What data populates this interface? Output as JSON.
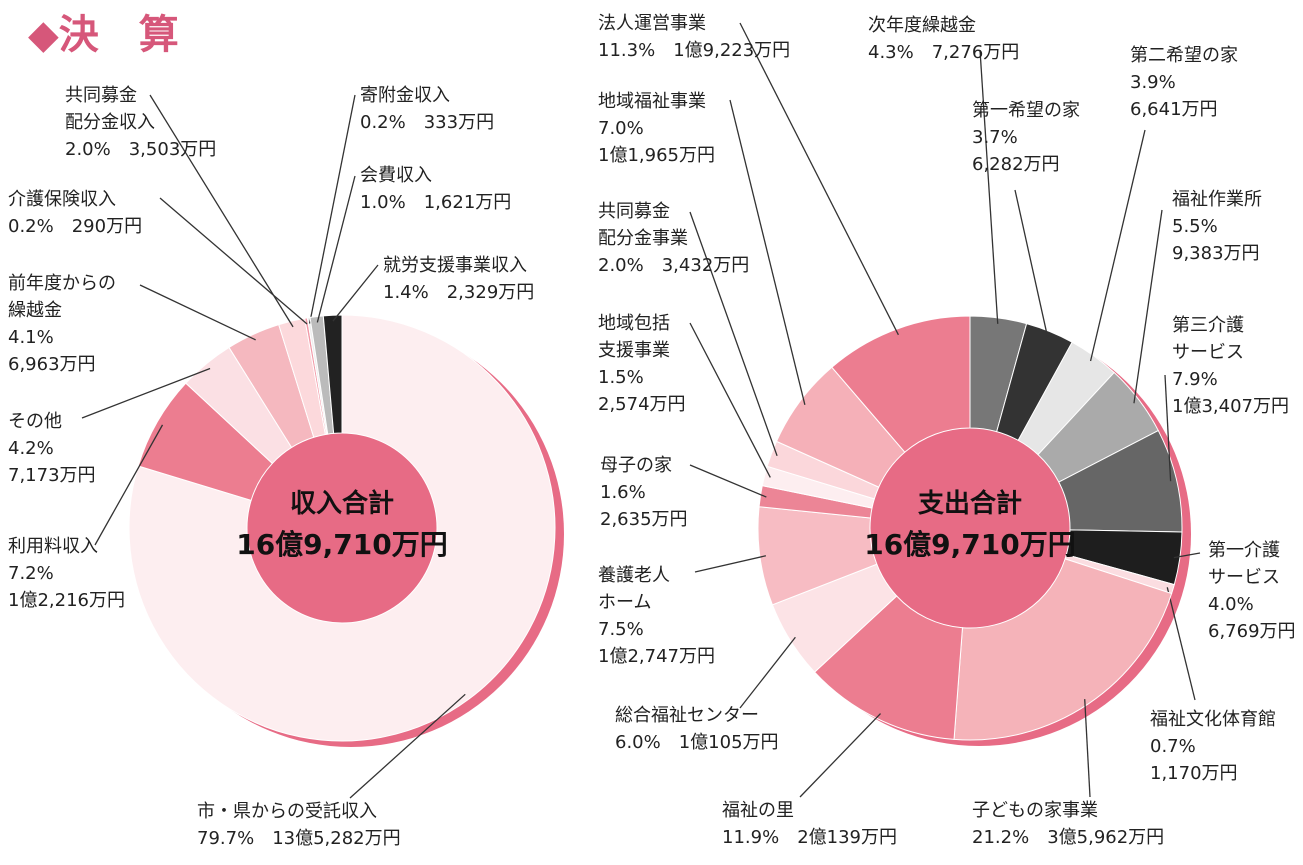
{
  "page_title": "◆決　算",
  "chart_data": [
    {
      "type": "donut",
      "center_label": "収入合計",
      "total_label": "16億9,710万円",
      "categories": [
        "市・県からの受託収入",
        "利用料収入",
        "その他",
        "前年度からの\n繰越金",
        "共同募金\n配分金収入",
        "介護保険収入",
        "寄附金収入",
        "会費収入",
        "就労支援事業収入"
      ],
      "values": [
        79.7,
        7.2,
        4.2,
        4.1,
        2.0,
        0.2,
        0.2,
        1.0,
        1.4
      ],
      "value_labels": [
        "79.7%",
        "7.2%",
        "4.2%",
        "4.1%",
        "2.0%",
        "0.2%",
        "0.2%",
        "1.0%",
        "1.4%"
      ],
      "amount_labels": [
        "13億5,282万円",
        "1億2,216万円",
        "7,173万円",
        "6,963万円",
        "3,503万円",
        "290万円",
        "333万円",
        "1,621万円",
        "2,329万円"
      ],
      "colors": [
        "#fdeef0",
        "#ec7d90",
        "#fbe0e4",
        "#f5b8bf",
        "#fcd9dc",
        "#f29aa8",
        "#eeeeee",
        "#bbbbbb",
        "#222222"
      ],
      "shadow_color": "#e76b85"
    },
    {
      "type": "donut",
      "center_label": "支出合計",
      "total_label": "16億9,710万円",
      "categories": [
        "次年度繰越金",
        "第一希望の家",
        "第二希望の家",
        "福祉作業所",
        "第三介護\nサービス",
        "第一介護\nサービス",
        "福祉文化体育館",
        "子どもの家事業",
        "福祉の里",
        "総合福祉センター",
        "養護老人\nホーム",
        "母子の家",
        "地域包括\n支援事業",
        "共同募金\n配分金事業",
        "地域福祉事業",
        "法人運営事業"
      ],
      "values": [
        4.3,
        3.7,
        3.9,
        5.5,
        7.9,
        4.0,
        0.7,
        21.2,
        11.9,
        6.0,
        7.5,
        1.6,
        1.5,
        2.0,
        7.0,
        11.3
      ],
      "value_labels": [
        "4.3%",
        "3.7%",
        "3.9%",
        "5.5%",
        "7.9%",
        "4.0%",
        "0.7%",
        "21.2%",
        "11.9%",
        "6.0%",
        "7.5%",
        "1.6%",
        "1.5%",
        "2.0%",
        "7.0%",
        "11.3%"
      ],
      "amount_labels": [
        "7,276万円",
        "6,282万円",
        "6,641万円",
        "9,383万円",
        "1億3,407万円",
        "6,769万円",
        "1,170万円",
        "3億5,962万円",
        "2億139万円",
        "1億105万円",
        "1億2,747万円",
        "2,635万円",
        "2,574万円",
        "3,432万円",
        "1億1,965万円",
        "1億9,223万円"
      ],
      "colors": [
        "#777777",
        "#333333",
        "#e6e6e6",
        "#aaaaaa",
        "#666666",
        "#1e1e1e",
        "#fbdde1",
        "#f5b3b9",
        "#ec7d90",
        "#fce3e6",
        "#f7bcc3",
        "#ec8596",
        "#fdeef0",
        "#fbd7db",
        "#f5b0b8",
        "#ec7d90"
      ],
      "shadow_color": "#e76b85"
    }
  ]
}
